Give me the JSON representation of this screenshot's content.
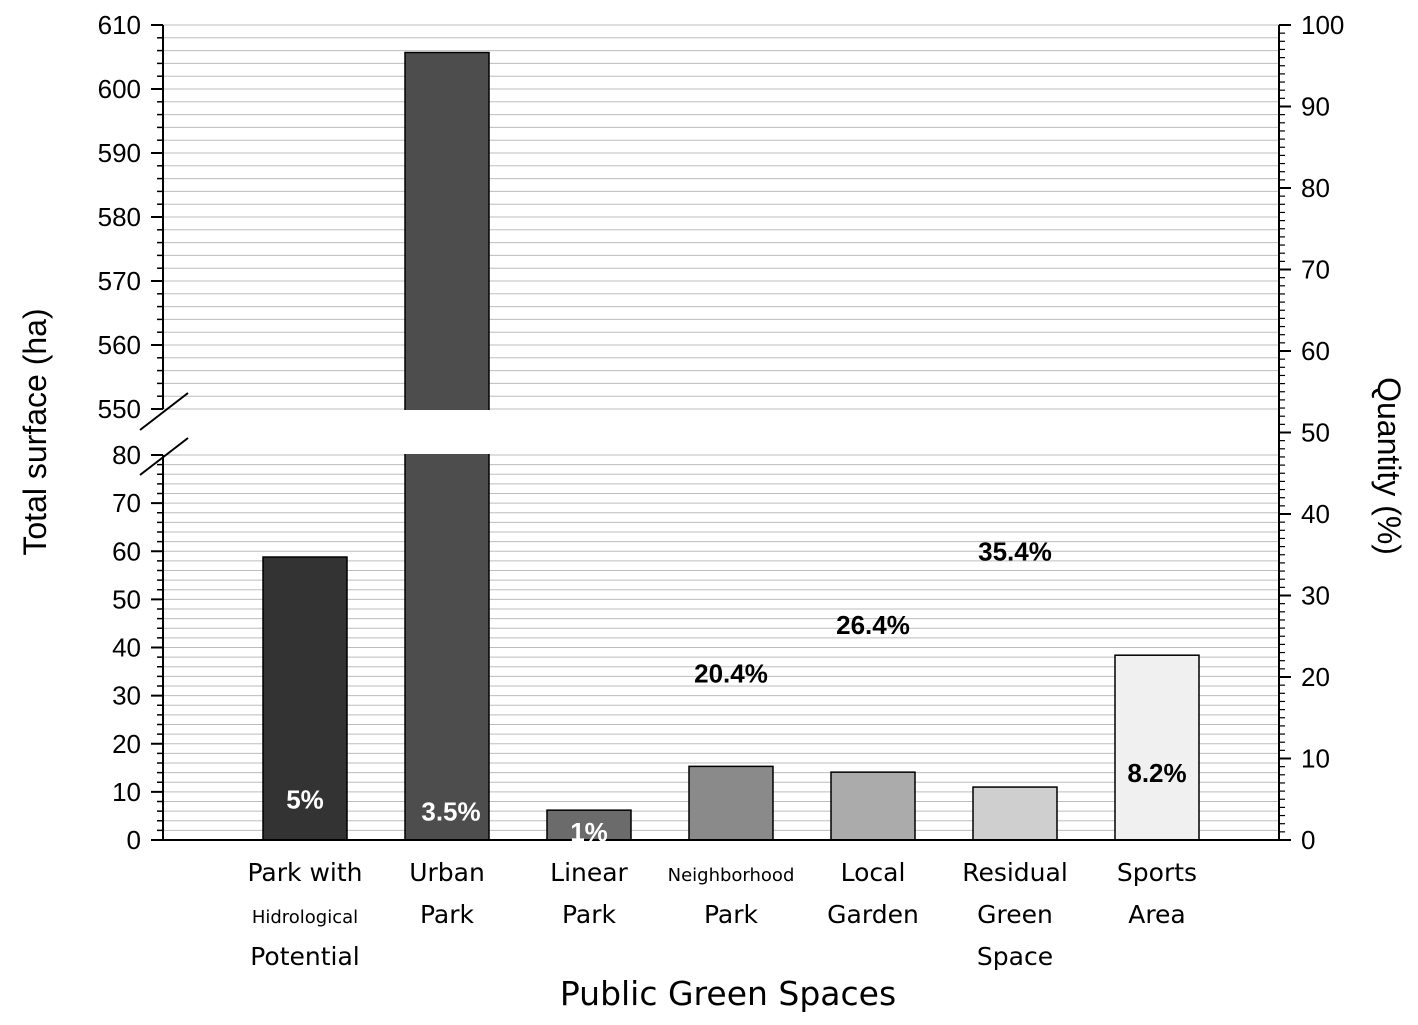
{
  "chart_data": {
    "type": "bar",
    "xlabel": "Public Green Spaces",
    "ylabel": "Total surface (ha)",
    "y2label": "Quantity (%)",
    "categories": [
      [
        "Park with",
        "Hidrological",
        "Potential"
      ],
      [
        "Urban",
        "Park"
      ],
      [
        "Linear",
        "Park"
      ],
      [
        "Neighborhood",
        "Park"
      ],
      [
        "Local",
        "Garden"
      ],
      [
        "Residual",
        "Green",
        "Space"
      ],
      [
        "Sports",
        "Area"
      ]
    ],
    "series": [
      {
        "values": [
          58.8,
          605.7,
          6.2,
          15.3,
          14.1,
          11.0,
          38.4
        ],
        "colors": [
          "#333333",
          "#4d4d4d",
          "#6b6b6b",
          "#8a8a8a",
          "#ababab",
          "#cfcfcf",
          "#f0f0f0"
        ]
      }
    ],
    "quantity_labels": [
      "5%",
      "3.5%",
      "1%",
      "20.4%",
      "26.4%",
      "35.4%",
      "8.2%"
    ],
    "quantity_label_colors": [
      "#ffffff",
      "#ffffff",
      "#ffffff",
      "#000000",
      "#000000",
      "#000000",
      "#000000"
    ],
    "quantity_values": [
      5,
      3.5,
      1,
      20.4,
      26.4,
      35.4,
      8.2
    ],
    "y_axis_lower": {
      "range": [
        0,
        80
      ],
      "ticks": [
        0,
        10,
        20,
        30,
        40,
        50,
        60,
        70,
        80
      ]
    },
    "y_axis_upper": {
      "range": [
        550,
        610
      ],
      "ticks": [
        550,
        560,
        570,
        580,
        590,
        600,
        610
      ]
    },
    "y_axis_break": [
      80,
      550
    ],
    "y2_axis": {
      "range": [
        0,
        100
      ],
      "ticks": [
        0,
        10,
        20,
        30,
        40,
        50,
        60,
        70,
        80,
        90,
        100
      ]
    },
    "grid": true,
    "legend": false
  }
}
